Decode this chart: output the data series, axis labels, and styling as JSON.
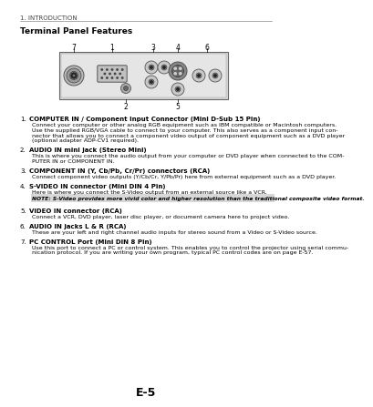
{
  "page_label": "1. INTRODUCTION",
  "section_title": "Terminal Panel Features",
  "page_number": "E-5",
  "bg_color": "#ffffff",
  "text_color": "#000000",
  "items": [
    {
      "num": "1.",
      "title": "COMPUTER IN / Component Input Connector (Mini D-Sub 15 Pin)",
      "body": "Connect your computer or other analog RGB equipment such as IBM compatible or Macintosh computers.\nUse the supplied RGB/VGA cable to connect to your computer. This also serves as a component input con-\nnector that allows you to connect a component video output of component equipment such as a DVD player\n(optional adapter ADP-CV1 required)."
    },
    {
      "num": "2.",
      "title": "AUDIO IN mini jack (Stereo Mini)",
      "body": "This is where you connect the audio output from your computer or DVD player when connected to the COM-\nPUTER IN or COMPONENT IN."
    },
    {
      "num": "3.",
      "title": "COMPONENT IN (Y, Cb/Pb, Cr/Pr) connectors (RCA)",
      "body": "Connect component video outputs (Y/Cb/Cr, Y/Pb/Pr) here from external equipment such as a DVD player."
    },
    {
      "num": "4.",
      "title": "S-VIDEO IN connector (Mini DIN 4 Pin)",
      "body": "Here is where you connect the S-Video output from an external source like a VCR."
    },
    {
      "num": "5.",
      "title": "VIDEO IN connector (RCA)",
      "body": "Connect a VCR, DVD player, laser disc player, or document camera here to project video."
    },
    {
      "num": "6.",
      "title": "AUDIO IN jacks L & R (RCA)",
      "body": "These are your left and right channel audio inputs for stereo sound from a Video or S-Video source."
    },
    {
      "num": "7.",
      "title": "PC CONTROL Port (Mini DIN 8 Pin)",
      "body": "Use this port to connect a PC or control system. This enables you to control the projector using serial commu-\nnication protocol. If you are writing your own program, typical PC control codes are on page E-57."
    }
  ],
  "note_text": "NOTE: S-Video provides more vivid color and higher resolution than the traditional composite video format.",
  "note_bg": "#d8d8d8"
}
